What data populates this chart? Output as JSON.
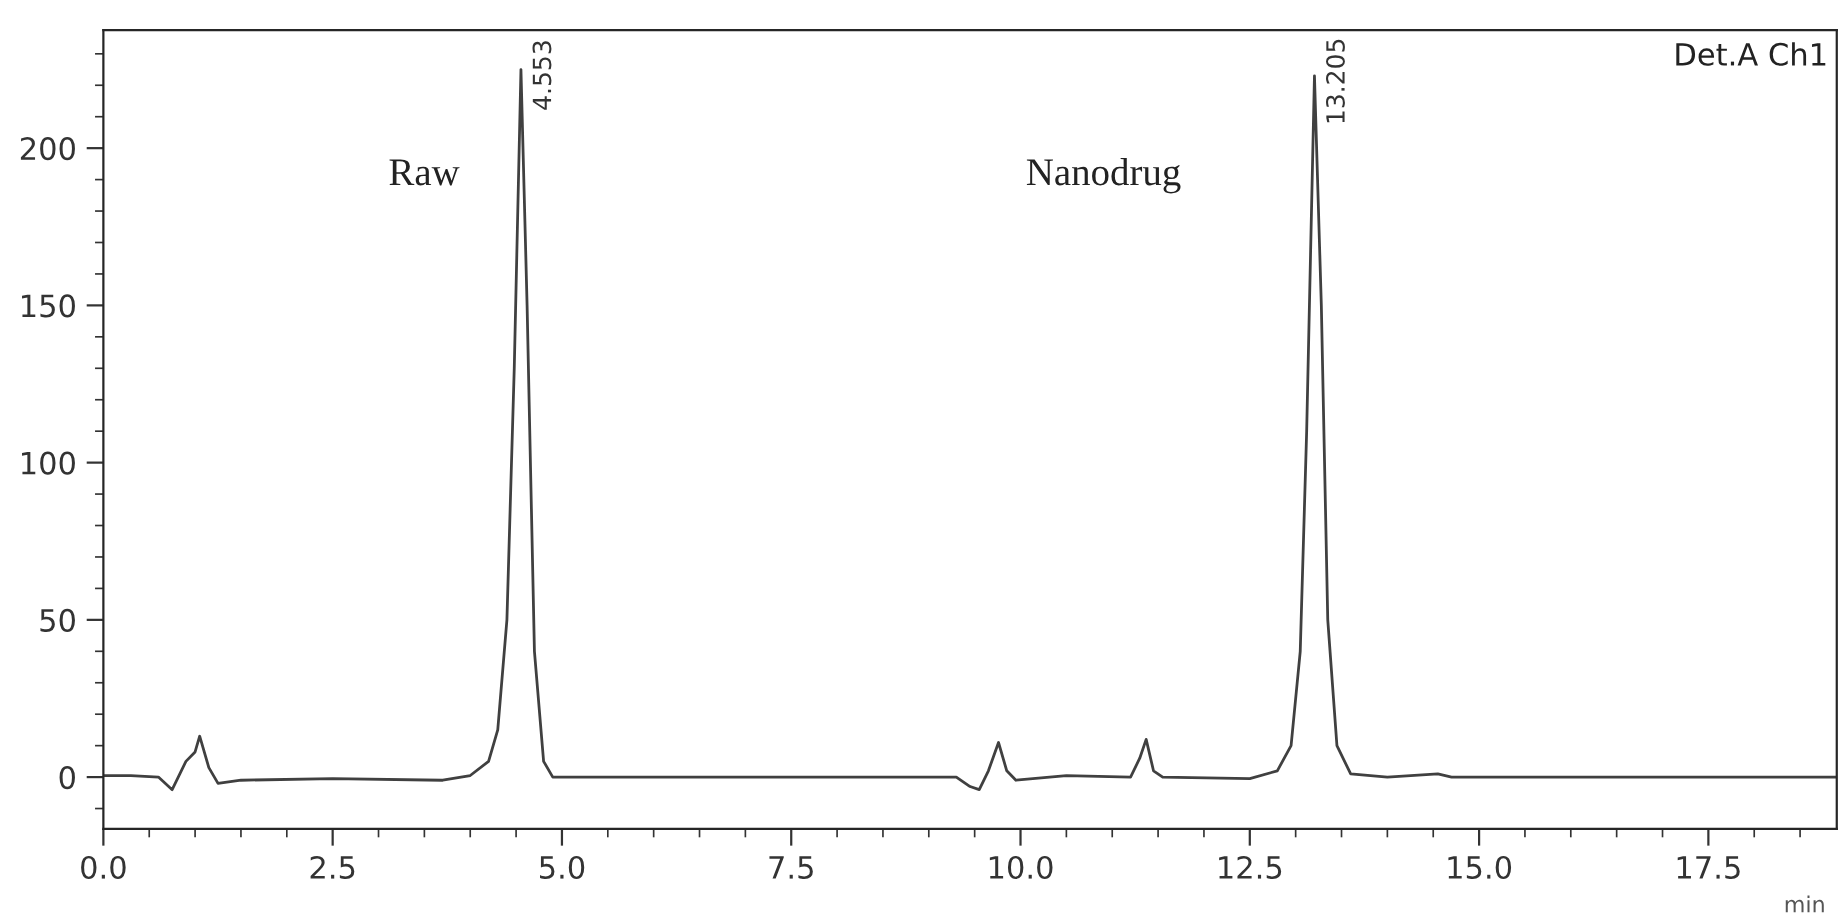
{
  "chart_data": {
    "type": "line",
    "xlabel": "min",
    "x": [
      0,
      0.3,
      0.6,
      0.75,
      0.9,
      1.0,
      1.05,
      1.15,
      1.25,
      1.5,
      2.5,
      3.7,
      4.0,
      4.2,
      4.3,
      4.4,
      4.48,
      4.553,
      4.62,
      4.7,
      4.8,
      4.9,
      5.5,
      7.0,
      9.3,
      9.45,
      9.55,
      9.65,
      9.76,
      9.85,
      9.95,
      10.5,
      11.2,
      11.3,
      11.37,
      11.45,
      11.55,
      12.5,
      12.8,
      12.95,
      13.05,
      13.12,
      13.205,
      13.28,
      13.35,
      13.45,
      13.6,
      14.0,
      14.55,
      14.7,
      18.9
    ],
    "series": [
      {
        "color": "#404040",
        "values": [
          0.5,
          0.5,
          0,
          -4,
          5,
          8,
          13,
          3,
          -2,
          -1,
          -0.5,
          -1,
          0.5,
          5,
          15,
          50,
          130,
          225,
          150,
          40,
          5,
          0,
          0,
          0,
          0,
          -3,
          -4,
          2,
          11,
          2,
          -1,
          0.5,
          0,
          6,
          12,
          2,
          0,
          -0.5,
          2,
          10,
          40,
          110,
          223,
          150,
          50,
          10,
          1,
          0,
          1,
          0,
          0
        ]
      }
    ],
    "xlim": [
      0,
      18.9
    ],
    "ylim": [
      -16.5,
      237.5
    ],
    "xticks": [
      {
        "value": 0,
        "label": "0.0"
      },
      {
        "value": 2.5,
        "label": "2.5"
      },
      {
        "value": 5,
        "label": "5.0"
      },
      {
        "value": 7.5,
        "label": "7.5"
      },
      {
        "value": 10,
        "label": "10.0"
      },
      {
        "value": 12.5,
        "label": "12.5"
      },
      {
        "value": 15,
        "label": "15.0"
      },
      {
        "value": 17.5,
        "label": "17.5"
      }
    ],
    "yticks": [
      0,
      50,
      100,
      150,
      200
    ],
    "grid": false,
    "legend": false,
    "annotations": [
      "Raw",
      "Nanodrug",
      {
        "text": "4.553",
        "x": 4.553,
        "y": 225
      },
      {
        "text": "13.205",
        "x": 13.205,
        "y": 223
      },
      "Det.A Ch1"
    ]
  }
}
